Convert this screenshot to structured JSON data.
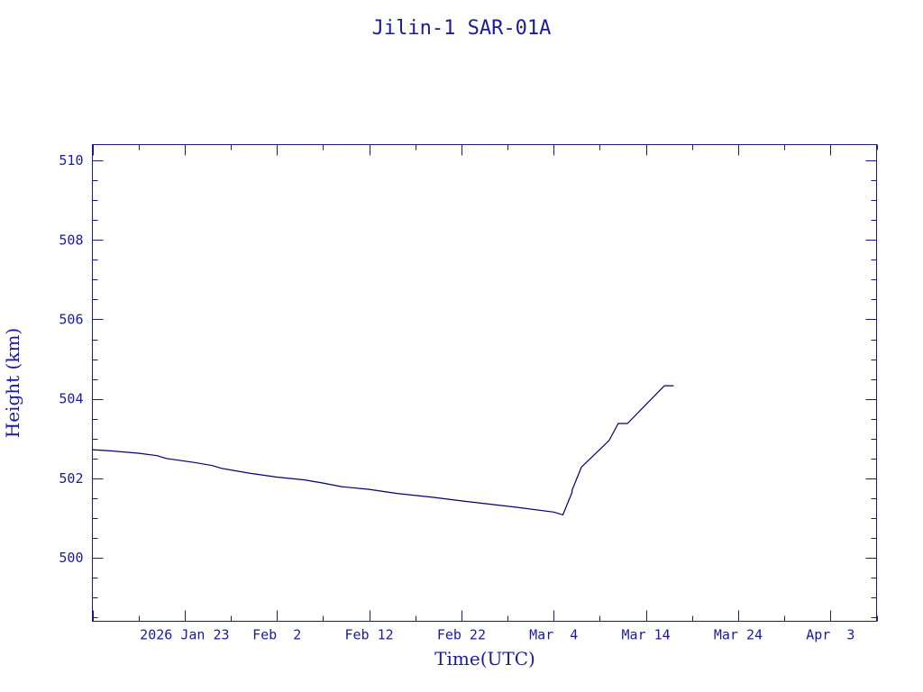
{
  "chart_data": {
    "type": "line",
    "title": "Jilin-1 SAR-01A",
    "xlabel": "Time(UTC)",
    "ylabel": "Height (km)",
    "xlim": [
      "2026-01-13",
      "2026-04-08"
    ],
    "ylim": [
      498.4,
      510.4
    ],
    "x_tick_labels": [
      "2026 Jan 23",
      "Feb  2",
      "Feb 12",
      "Feb 22",
      "Mar  4",
      "Mar 14",
      "Mar 24",
      "Apr  3"
    ],
    "x_ticks": [
      "2026-01-23",
      "2026-02-02",
      "2026-02-12",
      "2026-02-22",
      "2026-03-04",
      "2026-03-14",
      "2026-03-24",
      "2026-04-03"
    ],
    "y_ticks": [
      500,
      502,
      504,
      506,
      508,
      510
    ],
    "series": [
      {
        "color": "#00006e",
        "points": [
          [
            "2026-01-13",
            502.72
          ],
          [
            "2026-01-15",
            502.69
          ],
          [
            "2026-01-18",
            502.63
          ],
          [
            "2026-01-20",
            502.57
          ],
          [
            "2026-01-21",
            502.5
          ],
          [
            "2026-01-24",
            502.4
          ],
          [
            "2026-01-26",
            502.32
          ],
          [
            "2026-01-27",
            502.25
          ],
          [
            "2026-01-30",
            502.13
          ],
          [
            "2026-02-02",
            502.03
          ],
          [
            "2026-02-05",
            501.96
          ],
          [
            "2026-02-07",
            501.88
          ],
          [
            "2026-02-09",
            501.79
          ],
          [
            "2026-02-12",
            501.72
          ],
          [
            "2026-02-15",
            501.62
          ],
          [
            "2026-02-19",
            501.52
          ],
          [
            "2026-02-22",
            501.43
          ],
          [
            "2026-02-28",
            501.27
          ],
          [
            "2026-03-04",
            501.15
          ],
          [
            "2026-03-05",
            501.08
          ],
          [
            "2026-03-06",
            501.65
          ],
          [
            "2026-03-06",
            501.7
          ],
          [
            "2026-03-07",
            502.28
          ],
          [
            "2026-03-10",
            502.95
          ],
          [
            "2026-03-11",
            503.38
          ],
          [
            "2026-03-12",
            503.38
          ],
          [
            "2026-03-16",
            504.33
          ],
          [
            "2026-03-17",
            504.33
          ]
        ]
      }
    ]
  }
}
